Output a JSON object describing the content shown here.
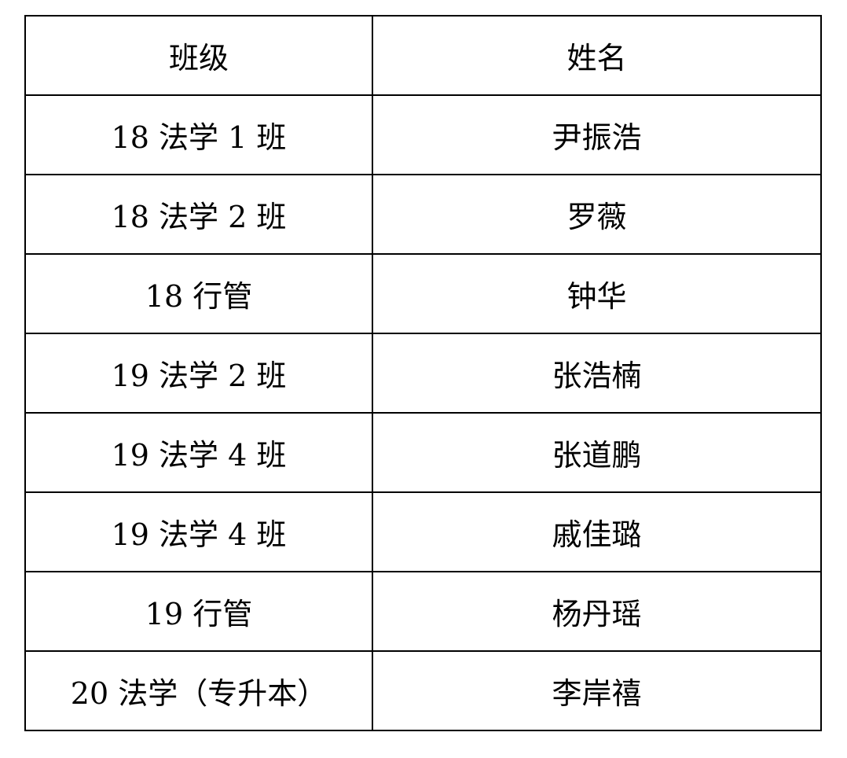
{
  "table": {
    "headers": [
      "班级",
      "姓名"
    ],
    "rows": [
      [
        "18 法学 1 班",
        "尹振浩"
      ],
      [
        "18 法学 2 班",
        "罗薇"
      ],
      [
        "18 行管",
        "钟华"
      ],
      [
        "19 法学 2 班",
        "张浩楠"
      ],
      [
        "19 法学 4 班",
        "张道鹏"
      ],
      [
        "19 法学 4 班",
        "戚佳璐"
      ],
      [
        "19 行管",
        "杨丹瑶"
      ],
      [
        "20 法学（专升本）",
        "李岸禧"
      ]
    ]
  }
}
